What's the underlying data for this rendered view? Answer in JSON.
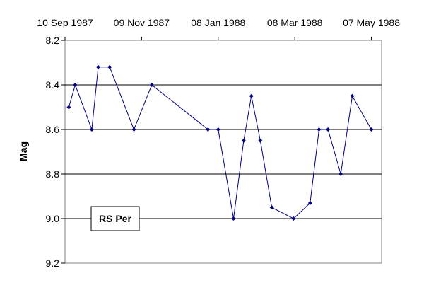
{
  "chart_data": {
    "type": "line",
    "title": "",
    "xlabel": "",
    "ylabel": "Mag",
    "ylim": [
      8.2,
      9.2
    ],
    "y_inverted": true,
    "yticks": [
      "8.2",
      "8.4",
      "8.6",
      "8.8",
      "9.0",
      "9.2"
    ],
    "xlim": [
      "1987-09-10",
      "1988-05-15"
    ],
    "xaxis_position": "top",
    "xticks": [
      {
        "date": "1987-09-10",
        "label": "10 Sep 1987"
      },
      {
        "date": "1987-11-09",
        "label": "09 Nov 1987"
      },
      {
        "date": "1988-01-08",
        "label": "08 Jan 1988"
      },
      {
        "date": "1988-03-08",
        "label": "08 Mar 1988"
      },
      {
        "date": "1988-05-07",
        "label": "07 May 1988"
      }
    ],
    "grid": "horizontal",
    "legend": {
      "text": "RS Per",
      "placement": "bottom-left"
    },
    "series": [
      {
        "name": "RS Per",
        "color": "#000080",
        "points": [
          {
            "x": "1987-09-13",
            "y": 8.5
          },
          {
            "x": "1987-09-18",
            "y": 8.4
          },
          {
            "x": "1987-10-01",
            "y": 8.6
          },
          {
            "x": "1987-10-06",
            "y": 8.32
          },
          {
            "x": "1987-10-15",
            "y": 8.32
          },
          {
            "x": "1987-11-03",
            "y": 8.6
          },
          {
            "x": "1987-11-17",
            "y": 8.4
          },
          {
            "x": "1987-12-31",
            "y": 8.6
          },
          {
            "x": "1988-01-08",
            "y": 8.6
          },
          {
            "x": "1988-01-20",
            "y": 9.0
          },
          {
            "x": "1988-01-28",
            "y": 8.65
          },
          {
            "x": "1988-02-03",
            "y": 8.45
          },
          {
            "x": "1988-02-10",
            "y": 8.65
          },
          {
            "x": "1988-02-19",
            "y": 8.95
          },
          {
            "x": "1988-03-07",
            "y": 9.0
          },
          {
            "x": "1988-03-20",
            "y": 8.93
          },
          {
            "x": "1988-03-27",
            "y": 8.6
          },
          {
            "x": "1988-04-03",
            "y": 8.6
          },
          {
            "x": "1988-04-13",
            "y": 8.8
          },
          {
            "x": "1988-04-22",
            "y": 8.45
          },
          {
            "x": "1988-05-07",
            "y": 8.6
          }
        ]
      }
    ]
  }
}
